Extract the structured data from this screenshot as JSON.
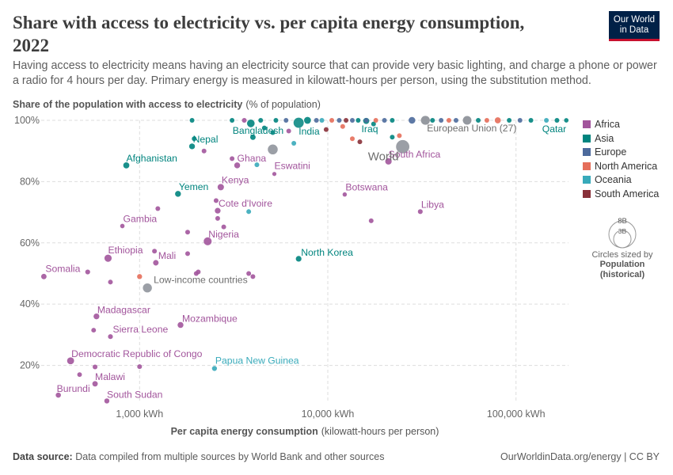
{
  "header": {
    "title": "Share with access to electricity vs. per capita energy consumption, 2022",
    "subtitle": "Having access to electricity means having an electricity source that can provide very basic lighting, and charge a phone or power a radio for 4 hours per day. Primary energy is measured in kilowatt-hours per person, using the substitution method."
  },
  "logo": {
    "line1": "Our World",
    "line2": "in Data"
  },
  "footer": {
    "source_label": "Data source:",
    "source_text": "Data compiled from multiple sources by World Bank and other sources",
    "url": "OurWorldinData.org/energy | CC BY"
  },
  "legend": {
    "items": [
      {
        "name": "Africa",
        "color": "#a2559c"
      },
      {
        "name": "Asia",
        "color": "#00847e"
      },
      {
        "name": "Europe",
        "color": "#4c6a9c"
      },
      {
        "name": "North America",
        "color": "#e56e5a"
      },
      {
        "name": "Oceania",
        "color": "#38aaba"
      },
      {
        "name": "South America",
        "color": "#883039"
      }
    ],
    "size_key": {
      "big": "8B",
      "small": "3B",
      "label": "Circles sized by",
      "label_bold_1": "Population",
      "label_bold_2": "(historical)"
    }
  },
  "chart_data": {
    "type": "scatter",
    "title": "Share with access to electricity vs. per capita energy consumption, 2022",
    "ylabel_bold": "Share of the population with access to electricity",
    "ylabel_unit": "(% of population)",
    "xlabel_bold": "Per capita energy consumption",
    "xlabel_unit": "(kilowatt-hours per person)",
    "x_scale": "log",
    "xlim": [
      300,
      190000
    ],
    "ylim": [
      8,
      100
    ],
    "x_ticks": [
      {
        "value": 1000,
        "label": "1,000 kWh"
      },
      {
        "value": 10000,
        "label": "10,000 kWh"
      },
      {
        "value": 100000,
        "label": "100,000 kWh"
      }
    ],
    "y_ticks": [
      {
        "value": 20,
        "label": "20%"
      },
      {
        "value": 40,
        "label": "40%"
      },
      {
        "value": 60,
        "label": "60%"
      },
      {
        "value": 80,
        "label": "80%"
      },
      {
        "value": 100,
        "label": "100%"
      }
    ],
    "grid": true,
    "legend_position": "right",
    "colors": {
      "Africa": "#a2559c",
      "Asia": "#00847e",
      "Europe": "#4c6a9c",
      "North America": "#e56e5a",
      "Oceania": "#38aaba",
      "South America": "#883039",
      "Aggregate": "#8a8e96"
    },
    "points": [
      {
        "label": "Somalia",
        "x": 310,
        "y": 49,
        "region": "Africa",
        "pop": 0.018
      },
      {
        "label": "Burundi",
        "x": 370,
        "y": 10.3,
        "region": "Africa",
        "pop": 0.013
      },
      {
        "label": "Malawi",
        "x": 580,
        "y": 14,
        "region": "Africa",
        "pop": 0.02
      },
      {
        "label": "South Sudan",
        "x": 670,
        "y": 8.4,
        "region": "Africa",
        "pop": 0.011
      },
      {
        "label": "Democratic Republic of Congo",
        "x": 430,
        "y": 21.5,
        "region": "Africa",
        "pop": 0.1
      },
      {
        "label": "Sierra Leone",
        "x": 700,
        "y": 29.4,
        "region": "Africa",
        "pop": 0.008
      },
      {
        "label": "Madagascar",
        "x": 590,
        "y": 36,
        "region": "Africa",
        "pop": 0.03
      },
      {
        "label": "Mozambique",
        "x": 1650,
        "y": 33.2,
        "region": "Africa",
        "pop": 0.033
      },
      {
        "label": "Mali",
        "x": 1220,
        "y": 53.5,
        "region": "Africa",
        "pop": 0.022
      },
      {
        "label": "Ethiopia",
        "x": 680,
        "y": 55,
        "region": "Africa",
        "pop": 0.12
      },
      {
        "label": "Nigeria",
        "x": 2300,
        "y": 60.5,
        "region": "Africa",
        "pop": 0.22
      },
      {
        "label": "Gambia",
        "x": 810,
        "y": 65.5,
        "region": "Africa",
        "pop": 0.003
      },
      {
        "label": "Cote d'Ivoire",
        "x": 2600,
        "y": 70.5,
        "region": "Africa",
        "pop": 0.028
      },
      {
        "label": "Kenya",
        "x": 2700,
        "y": 78.2,
        "region": "Africa",
        "pop": 0.054
      },
      {
        "label": "Ghana",
        "x": 3300,
        "y": 85.3,
        "region": "Africa",
        "pop": 0.033
      },
      {
        "label": "Eswatini",
        "x": 5200,
        "y": 82.5,
        "region": "Africa",
        "pop": 0.001
      },
      {
        "label": "Botswana",
        "x": 12300,
        "y": 75.8,
        "region": "Africa",
        "pop": 0.002
      },
      {
        "label": "Libya",
        "x": 31000,
        "y": 70.2,
        "region": "Africa",
        "pop": 0.007
      },
      {
        "label": "South Africa",
        "x": 21000,
        "y": 86.6,
        "region": "Africa",
        "pop": 0.06
      },
      {
        "label": "Nepal",
        "x": 1900,
        "y": 91.5,
        "region": "Asia",
        "pop": 0.03
      },
      {
        "label": "Afghanistan",
        "x": 850,
        "y": 85.3,
        "region": "Asia",
        "pop": 0.041
      },
      {
        "label": "Yemen",
        "x": 1600,
        "y": 76,
        "region": "Asia",
        "pop": 0.033
      },
      {
        "label": "Bangladesh",
        "x": 3900,
        "y": 99,
        "region": "Asia",
        "pop": 0.17
      },
      {
        "label": "India",
        "x": 7000,
        "y": 99.2,
        "region": "Asia",
        "pop": 1.42
      },
      {
        "label": "Iraq",
        "x": 16000,
        "y": 99.8,
        "region": "Asia",
        "pop": 0.044
      },
      {
        "label": "Qatar",
        "x": 185000,
        "y": 100,
        "region": "Asia",
        "pop": 0.003
      },
      {
        "label": "North Korea",
        "x": 7000,
        "y": 54.8,
        "region": "Asia",
        "pop": 0.026
      },
      {
        "label": "Papua New Guinea",
        "x": 2500,
        "y": 19,
        "region": "Oceania",
        "pop": 0.01
      },
      {
        "label": "World",
        "x": 25000,
        "y": 91.4,
        "region": "Aggregate",
        "pop": 7.95
      },
      {
        "label": "European Union (27)",
        "x": 33000,
        "y": 100,
        "region": "Aggregate",
        "pop": 0.45
      },
      {
        "label": "Low-income countries",
        "x": 1100,
        "y": 45.3,
        "region": "Aggregate",
        "pop": 0.7
      },
      {
        "label": "",
        "x": 5100,
        "y": 90.5,
        "region": "Aggregate",
        "pop": 1.2
      },
      {
        "label": "",
        "x": 580,
        "y": 19.5,
        "region": "Africa",
        "pop": 0.007
      },
      {
        "label": "",
        "x": 1000,
        "y": 19.6,
        "region": "Africa",
        "pop": 0.006
      },
      {
        "label": "",
        "x": 480,
        "y": 17,
        "region": "Africa",
        "pop": 0.005
      },
      {
        "label": "",
        "x": 570,
        "y": 31.5,
        "region": "Africa",
        "pop": 0.005
      },
      {
        "label": "",
        "x": 530,
        "y": 50.5,
        "region": "Africa",
        "pop": 0.008
      },
      {
        "label": "",
        "x": 700,
        "y": 47.2,
        "region": "Africa",
        "pop": 0.006
      },
      {
        "label": "",
        "x": 1000,
        "y": 49,
        "region": "North America",
        "pop": 0.011
      },
      {
        "label": "",
        "x": 2000,
        "y": 50,
        "region": "Africa",
        "pop": 0.006
      },
      {
        "label": "",
        "x": 2050,
        "y": 50.5,
        "region": "Africa",
        "pop": 0.006
      },
      {
        "label": "",
        "x": 3800,
        "y": 50,
        "region": "Africa",
        "pop": 0.006
      },
      {
        "label": "",
        "x": 4000,
        "y": 49,
        "region": "Africa",
        "pop": 0.006
      },
      {
        "label": "",
        "x": 1800,
        "y": 56.5,
        "region": "Africa",
        "pop": 0.006
      },
      {
        "label": "",
        "x": 1200,
        "y": 57.3,
        "region": "Africa",
        "pop": 0.006
      },
      {
        "label": "",
        "x": 1800,
        "y": 63.5,
        "region": "Africa",
        "pop": 0.006
      },
      {
        "label": "",
        "x": 2800,
        "y": 65.2,
        "region": "Africa",
        "pop": 0.006
      },
      {
        "label": "",
        "x": 1250,
        "y": 71.2,
        "region": "Africa",
        "pop": 0.006
      },
      {
        "label": "",
        "x": 2550,
        "y": 73.8,
        "region": "Africa",
        "pop": 0.006
      },
      {
        "label": "",
        "x": 2600,
        "y": 68,
        "region": "Africa",
        "pop": 0.006
      },
      {
        "label": "",
        "x": 3800,
        "y": 70.2,
        "region": "Oceania",
        "pop": 0.006
      },
      {
        "label": "",
        "x": 17000,
        "y": 67.2,
        "region": "Africa",
        "pop": 0.006
      },
      {
        "label": "",
        "x": 2200,
        "y": 90,
        "region": "Africa",
        "pop": 0.006
      },
      {
        "label": "",
        "x": 3100,
        "y": 87.5,
        "region": "Africa",
        "pop": 0.006
      },
      {
        "label": "",
        "x": 4200,
        "y": 85.5,
        "region": "Oceania",
        "pop": 0.006
      },
      {
        "label": "",
        "x": 1950,
        "y": 94,
        "region": "Asia",
        "pop": 0.006
      },
      {
        "label": "",
        "x": 4000,
        "y": 94.5,
        "region": "Asia",
        "pop": 0.02
      },
      {
        "label": "",
        "x": 6600,
        "y": 92.5,
        "region": "Oceania",
        "pop": 0.006
      },
      {
        "label": "",
        "x": 4600,
        "y": 97.5,
        "region": "Asia",
        "pop": 0.006
      },
      {
        "label": "",
        "x": 5100,
        "y": 96,
        "region": "Asia",
        "pop": 0.006
      },
      {
        "label": "",
        "x": 6200,
        "y": 96.5,
        "region": "Africa",
        "pop": 0.006
      },
      {
        "label": "",
        "x": 9800,
        "y": 97,
        "region": "South America",
        "pop": 0.006
      },
      {
        "label": "",
        "x": 13500,
        "y": 94,
        "region": "North America",
        "pop": 0.006
      },
      {
        "label": "",
        "x": 14800,
        "y": 93,
        "region": "South America",
        "pop": 0.006
      },
      {
        "label": "",
        "x": 12000,
        "y": 98,
        "region": "North America",
        "pop": 0.006
      },
      {
        "label": "",
        "x": 17500,
        "y": 98.8,
        "region": "Asia",
        "pop": 0.006
      },
      {
        "label": "",
        "x": 22000,
        "y": 94.5,
        "region": "Asia",
        "pop": 0.006
      },
      {
        "label": "",
        "x": 24000,
        "y": 95,
        "region": "North America",
        "pop": 0.006
      },
      {
        "label": "",
        "x": 1900,
        "y": 100,
        "region": "Asia",
        "pop": 0.006
      },
      {
        "label": "",
        "x": 3100,
        "y": 100,
        "region": "Asia",
        "pop": 0.006
      },
      {
        "label": "",
        "x": 3600,
        "y": 100,
        "region": "Africa",
        "pop": 0.006
      },
      {
        "label": "",
        "x": 4400,
        "y": 100,
        "region": "Asia",
        "pop": 0.006
      },
      {
        "label": "",
        "x": 5300,
        "y": 100,
        "region": "Asia",
        "pop": 0.006
      },
      {
        "label": "",
        "x": 6000,
        "y": 100,
        "region": "Europe",
        "pop": 0.006
      },
      {
        "label": "",
        "x": 7800,
        "y": 100,
        "region": "Asia",
        "pop": 0.09
      },
      {
        "label": "",
        "x": 8700,
        "y": 100,
        "region": "Europe",
        "pop": 0.006
      },
      {
        "label": "",
        "x": 9300,
        "y": 100,
        "region": "Oceania",
        "pop": 0.006
      },
      {
        "label": "",
        "x": 10500,
        "y": 100,
        "region": "North America",
        "pop": 0.006
      },
      {
        "label": "",
        "x": 11500,
        "y": 100,
        "region": "Europe",
        "pop": 0.006
      },
      {
        "label": "",
        "x": 12500,
        "y": 100,
        "region": "South America",
        "pop": 0.006
      },
      {
        "label": "",
        "x": 13500,
        "y": 100,
        "region": "Europe",
        "pop": 0.006
      },
      {
        "label": "",
        "x": 14500,
        "y": 100,
        "region": "Asia",
        "pop": 0.006
      },
      {
        "label": "",
        "x": 16000,
        "y": 100,
        "region": "Europe",
        "pop": 0.006
      },
      {
        "label": "",
        "x": 18000,
        "y": 100,
        "region": "North America",
        "pop": 0.006
      },
      {
        "label": "",
        "x": 20000,
        "y": 100,
        "region": "Europe",
        "pop": 0.006
      },
      {
        "label": "",
        "x": 22000,
        "y": 100,
        "region": "Asia",
        "pop": 0.006
      },
      {
        "label": "",
        "x": 28000,
        "y": 100,
        "region": "Europe",
        "pop": 0.08
      },
      {
        "label": "",
        "x": 36000,
        "y": 100,
        "region": "Asia",
        "pop": 0.006
      },
      {
        "label": "",
        "x": 40000,
        "y": 100,
        "region": "Europe",
        "pop": 0.006
      },
      {
        "label": "",
        "x": 44000,
        "y": 100,
        "region": "North America",
        "pop": 0.006
      },
      {
        "label": "",
        "x": 48000,
        "y": 100,
        "region": "Europe",
        "pop": 0.006
      },
      {
        "label": "",
        "x": 55000,
        "y": 100,
        "region": "Aggregate",
        "pop": 0.35
      },
      {
        "label": "",
        "x": 63000,
        "y": 100,
        "region": "Asia",
        "pop": 0.006
      },
      {
        "label": "",
        "x": 70000,
        "y": 100,
        "region": "North America",
        "pop": 0.006
      },
      {
        "label": "",
        "x": 80000,
        "y": 100,
        "region": "North America",
        "pop": 0.04
      },
      {
        "label": "",
        "x": 92000,
        "y": 100,
        "region": "Asia",
        "pop": 0.006
      },
      {
        "label": "",
        "x": 105000,
        "y": 100,
        "region": "Europe",
        "pop": 0.006
      },
      {
        "label": "",
        "x": 120000,
        "y": 100,
        "region": "Asia",
        "pop": 0.006
      },
      {
        "label": "",
        "x": 145000,
        "y": 100,
        "region": "Oceania",
        "pop": 0.006
      },
      {
        "label": "",
        "x": 165000,
        "y": 100,
        "region": "Asia",
        "pop": 0.006
      }
    ]
  }
}
